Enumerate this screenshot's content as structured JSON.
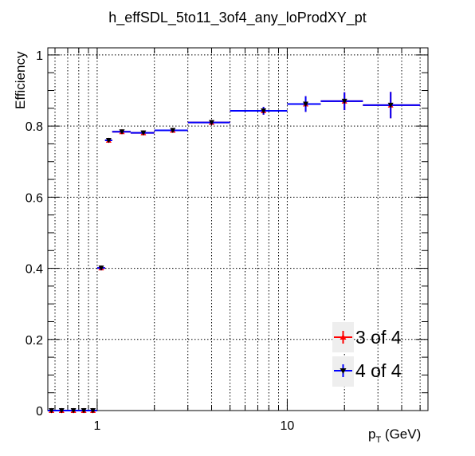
{
  "chart_data": {
    "type": "scatter",
    "title": "h_effSDL_5to11_3of4_any_loProdXY_pt",
    "xlabel": "p",
    "xlabel_sub": "T",
    "xlabel_unit": " (GeV)",
    "ylabel": "Efficiency",
    "x_scale": "log",
    "xlim": [
      0.55,
      55
    ],
    "ylim": [
      0,
      1.02
    ],
    "x_tick_labels": [
      "1",
      "10"
    ],
    "y_tick_labels": [
      "0",
      "0.2",
      "0.4",
      "0.6",
      "0.8",
      "1"
    ],
    "grid": true,
    "legend_position": "bottom-right",
    "series": [
      {
        "name": "3 of 4",
        "color": "#ff0000",
        "marker": "triangle-up",
        "x": [
          0.575,
          0.65,
          0.75,
          0.85,
          0.95,
          1.05,
          1.15,
          1.35,
          1.75,
          2.5,
          4.0,
          7.5,
          12.5,
          20.0,
          35.0
        ],
        "y": [
          0.0,
          0.0,
          0.0,
          0.0,
          0.0,
          0.401,
          0.76,
          0.784,
          0.781,
          0.788,
          0.81,
          0.843,
          0.862,
          0.87,
          0.859
        ],
        "x_low": [
          0.55,
          0.6,
          0.7,
          0.8,
          0.9,
          1.0,
          1.1,
          1.2,
          1.5,
          2.0,
          3.0,
          5.0,
          10.0,
          15.0,
          25.0
        ],
        "x_high": [
          0.6,
          0.7,
          0.8,
          0.9,
          1.0,
          1.1,
          1.2,
          1.5,
          2.0,
          3.0,
          5.0,
          10.0,
          15.0,
          25.0,
          50.0
        ],
        "y_err": [
          0.003,
          0.003,
          0.003,
          0.003,
          0.003,
          0.006,
          0.005,
          0.004,
          0.004,
          0.004,
          0.006,
          0.011,
          0.022,
          0.025,
          0.037
        ]
      },
      {
        "name": "4 of 4",
        "color": "#0000ff",
        "marker": "triangle-down",
        "x": [
          0.575,
          0.65,
          0.75,
          0.85,
          0.95,
          1.05,
          1.15,
          1.35,
          1.75,
          2.5,
          4.0,
          7.5,
          12.5,
          20.0,
          35.0
        ],
        "y": [
          0.0,
          0.0,
          0.0,
          0.0,
          0.0,
          0.401,
          0.76,
          0.784,
          0.781,
          0.788,
          0.81,
          0.843,
          0.862,
          0.87,
          0.859
        ],
        "x_low": [
          0.55,
          0.6,
          0.7,
          0.8,
          0.9,
          1.0,
          1.1,
          1.2,
          1.5,
          2.0,
          3.0,
          5.0,
          10.0,
          15.0,
          25.0
        ],
        "x_high": [
          0.6,
          0.7,
          0.8,
          0.9,
          1.0,
          1.1,
          1.2,
          1.5,
          2.0,
          3.0,
          5.0,
          10.0,
          15.0,
          25.0,
          50.0
        ],
        "y_err": [
          0.003,
          0.003,
          0.003,
          0.003,
          0.003,
          0.006,
          0.005,
          0.004,
          0.004,
          0.004,
          0.006,
          0.011,
          0.022,
          0.025,
          0.037
        ]
      }
    ]
  }
}
